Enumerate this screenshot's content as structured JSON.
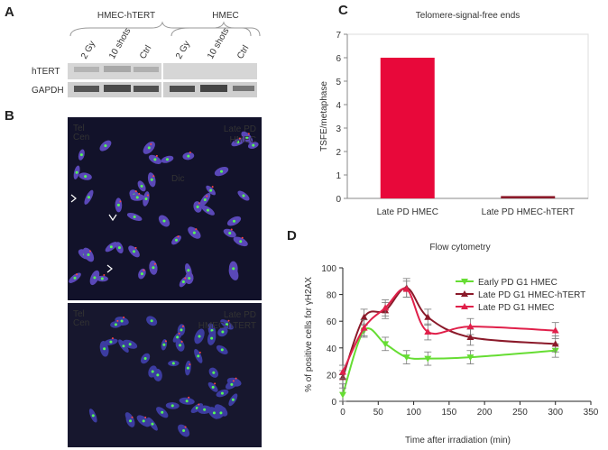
{
  "panel_labels": [
    "A",
    "B",
    "C",
    "D"
  ],
  "panel_a": {
    "groups": [
      "HMEC-hTERT",
      "HMEC"
    ],
    "lanes": [
      "2 Gy",
      "10 shots",
      "Ctrl",
      "2 Gy",
      "10 shots",
      "Ctrl"
    ],
    "rows": [
      "hTERT",
      "GAPDH"
    ]
  },
  "panel_b": {
    "top": {
      "stains": [
        "Tel",
        "Cen"
      ],
      "caption": [
        "Late PD",
        "HMEC"
      ],
      "annotation": "Dic"
    },
    "bottom": {
      "stains": [
        "Tel",
        "Cen"
      ],
      "caption": [
        "Late PD",
        "HMEC-hTERT"
      ]
    }
  },
  "chart_data": [
    {
      "type": "bar",
      "title": "Telomere-signal-free ends",
      "y_label": "TSFE/metaphase",
      "categories": [
        "Late PD HMEC",
        "Late PD HMEC-hTERT"
      ],
      "values": [
        6,
        0.1
      ],
      "colors": [
        "#e8083a",
        "#8b1a2a"
      ],
      "ylim": [
        0,
        7
      ],
      "yticks": [
        0,
        1,
        2,
        3,
        4,
        5,
        6,
        7
      ],
      "grid": false
    },
    {
      "type": "line",
      "title": "Flow cytometry",
      "x_label": "Time after irradiation (min)",
      "y_label": "% of positive cells for γH2AX",
      "x": [
        0,
        30,
        60,
        90,
        120,
        180,
        300
      ],
      "series": [
        {
          "name": "Early PD G1 HMEC",
          "color": "#66dd33",
          "marker": "down",
          "values": [
            5,
            53,
            43,
            33,
            32,
            33,
            38
          ],
          "errors": [
            5,
            5,
            5,
            5,
            5,
            5,
            5
          ]
        },
        {
          "name": "Late PD G1 HMEC-hTERT",
          "color": "#8b1a2a",
          "marker": "up",
          "values": [
            18,
            63,
            68,
            85,
            63,
            48,
            43
          ],
          "errors": [
            5,
            6,
            6,
            7,
            6,
            6,
            6
          ]
        },
        {
          "name": "Late PD G1 HMEC",
          "color": "#e0204a",
          "marker": "up",
          "values": [
            22,
            55,
            70,
            84,
            52,
            56,
            53
          ],
          "errors": [
            5,
            6,
            6,
            6,
            6,
            6,
            6
          ]
        }
      ],
      "xlim": [
        0,
        350
      ],
      "xticks": [
        0,
        50,
        100,
        150,
        200,
        250,
        300,
        350
      ],
      "ylim": [
        0,
        100
      ],
      "yticks": [
        0,
        20,
        40,
        60,
        80,
        100
      ],
      "legend": "upper right"
    }
  ]
}
